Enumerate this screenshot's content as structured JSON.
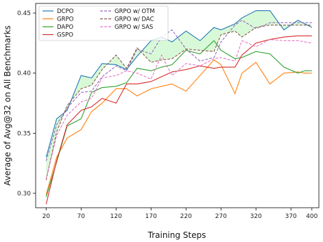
{
  "chart_data": {
    "type": "line",
    "xlabel": "Training Steps",
    "ylabel": "Average of Avg@32 on All Benchmarks",
    "x": [
      20,
      35,
      50,
      70,
      85,
      100,
      120,
      135,
      150,
      170,
      185,
      200,
      220,
      240,
      260,
      270,
      290,
      300,
      320,
      340,
      360,
      380,
      390,
      400
    ],
    "xticks": [
      20,
      70,
      120,
      170,
      220,
      270,
      320,
      370,
      400
    ],
    "yticks": [
      "0.30",
      "0.35",
      "0.40",
      "0.45"
    ],
    "xlim": [
      5,
      410
    ],
    "ylim": [
      0.288,
      0.458
    ],
    "legend_position": "top-left",
    "shade_between": [
      "DCPO",
      "GRPO w/ DAC"
    ],
    "shade_color": "#90ee90",
    "series": [
      {
        "name": "DCPO",
        "color": "#1f77b4",
        "dash": "solid",
        "values": [
          0.33,
          0.362,
          0.369,
          0.398,
          0.396,
          0.408,
          0.407,
          0.403,
          0.414,
          0.427,
          0.43,
          0.426,
          0.435,
          0.427,
          0.438,
          0.436,
          0.441,
          0.446,
          0.452,
          0.452,
          0.436,
          0.444,
          0.441,
          0.438
        ]
      },
      {
        "name": "GRPO",
        "color": "#ff7f0e",
        "dash": "solid",
        "values": [
          0.299,
          0.33,
          0.346,
          0.353,
          0.368,
          0.375,
          0.387,
          0.387,
          0.381,
          0.387,
          0.389,
          0.391,
          0.385,
          0.398,
          0.411,
          0.407,
          0.383,
          0.4,
          0.409,
          0.391,
          0.4,
          0.401,
          0.4,
          0.4
        ]
      },
      {
        "name": "DAPO",
        "color": "#2ca02c",
        "dash": "solid",
        "values": [
          0.297,
          0.326,
          0.356,
          0.362,
          0.384,
          0.388,
          0.389,
          0.392,
          0.404,
          0.402,
          0.405,
          0.407,
          0.419,
          0.416,
          0.427,
          0.419,
          0.412,
          0.413,
          0.418,
          0.416,
          0.405,
          0.4,
          0.402,
          0.402
        ]
      },
      {
        "name": "GSPO",
        "color": "#d62728",
        "dash": "solid",
        "values": [
          0.291,
          0.327,
          0.357,
          0.369,
          0.372,
          0.379,
          0.375,
          0.391,
          0.391,
          0.393,
          0.397,
          0.401,
          0.403,
          0.406,
          0.404,
          0.405,
          0.405,
          0.415,
          0.425,
          0.428,
          0.43,
          0.431,
          0.431,
          0.431
        ]
      },
      {
        "name": "GRPO w/ OTM",
        "color": "#9467bd",
        "dash": "dashed",
        "values": [
          0.327,
          0.357,
          0.371,
          0.384,
          0.385,
          0.397,
          0.406,
          0.402,
          0.42,
          0.416,
          0.43,
          0.436,
          0.42,
          0.41,
          0.413,
          0.426,
          0.44,
          0.444,
          0.437,
          0.442,
          0.442,
          0.442,
          0.442,
          0.442
        ]
      },
      {
        "name": "GRPO w/ DAC",
        "color": "#8c564b",
        "dash": "dashed",
        "values": [
          0.311,
          0.351,
          0.373,
          0.387,
          0.39,
          0.403,
          0.415,
          0.404,
          0.421,
          0.409,
          0.411,
          0.412,
          0.42,
          0.419,
          0.418,
          0.432,
          0.435,
          0.43,
          0.438,
          0.44,
          0.44,
          0.44,
          0.44,
          0.44
        ]
      },
      {
        "name": "GRPO w/ SAS",
        "color": "#e377c2",
        "dash": "dashed",
        "values": [
          0.312,
          0.348,
          0.365,
          0.376,
          0.379,
          0.396,
          0.398,
          0.402,
          0.4,
          0.395,
          0.415,
          0.398,
          0.408,
          0.406,
          0.412,
          0.413,
          0.41,
          0.427,
          0.422,
          0.428,
          0.427,
          0.427,
          0.426,
          0.425
        ]
      }
    ]
  }
}
